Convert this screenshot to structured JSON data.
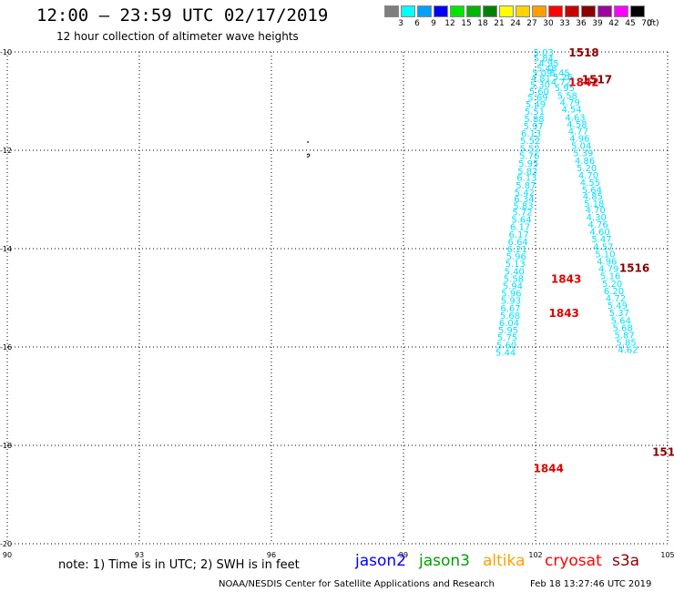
{
  "header": {
    "title": "12:00 – 23:59 UTC 02/17/2019",
    "subtitle": "12 hour collection of altimeter wave heights"
  },
  "scale": {
    "steps": [
      {
        "label": "3",
        "color": "#7f7f7f"
      },
      {
        "label": "6",
        "color": "#00ffff"
      },
      {
        "label": "9",
        "color": "#00a0ff"
      },
      {
        "label": "12",
        "color": "#0000ff"
      },
      {
        "label": "15",
        "color": "#00e600"
      },
      {
        "label": "18",
        "color": "#00b400"
      },
      {
        "label": "21",
        "color": "#008200"
      },
      {
        "label": "24",
        "color": "#ffff00"
      },
      {
        "label": "27",
        "color": "#ffd200"
      },
      {
        "label": "30",
        "color": "#ffa000"
      },
      {
        "label": "33",
        "color": "#ff0000"
      },
      {
        "label": "36",
        "color": "#c80000"
      },
      {
        "label": "39",
        "color": "#8c0000"
      },
      {
        "label": "42",
        "color": "#a000a0"
      },
      {
        "label": "45",
        "color": "#ff00ff"
      },
      {
        "label": "70",
        "color": "#000000"
      }
    ],
    "unit": "(ft)"
  },
  "axes": {
    "y_labels": [
      "-10",
      "-12",
      "-14",
      "-16",
      "-18",
      "-20"
    ],
    "x_labels": [
      "90",
      "93",
      "96",
      "99",
      "102",
      "105"
    ],
    "lat_range": [
      -20,
      -10
    ],
    "lon_range": [
      90,
      105
    ]
  },
  "track_values": {
    "color": "#00e0ff",
    "points": [
      [
        "5.03",
        102.18,
        -10.0
      ],
      [
        "5.84",
        102.18,
        -10.12
      ],
      [
        "4.95",
        102.3,
        -10.22
      ],
      [
        "5.48",
        102.25,
        -10.32
      ],
      [
        "5.09",
        102.15,
        -10.42
      ],
      [
        "4.81",
        102.12,
        -10.53
      ],
      [
        "5.30",
        102.1,
        -10.66
      ],
      [
        "5.60",
        102.08,
        -10.8
      ],
      [
        "5.69",
        102.05,
        -10.92
      ],
      [
        "5.49",
        102.0,
        -11.06
      ],
      [
        "5.51",
        101.98,
        -11.2
      ],
      [
        "5.88",
        101.97,
        -11.35
      ],
      [
        "5.97",
        101.95,
        -11.5
      ],
      [
        "6.13",
        101.9,
        -11.65
      ],
      [
        "5.52",
        101.88,
        -11.8
      ],
      [
        "5.52",
        101.87,
        -11.95
      ],
      [
        "5.76",
        101.86,
        -12.1
      ],
      [
        "5.95",
        101.84,
        -12.26
      ],
      [
        "5.82",
        101.82,
        -12.42
      ],
      [
        "6.13",
        101.8,
        -12.55
      ],
      [
        "5.87",
        101.78,
        -12.7
      ],
      [
        "5.42",
        101.75,
        -12.85
      ],
      [
        "6.34",
        101.74,
        -12.98
      ],
      [
        "5.83",
        101.72,
        -13.12
      ],
      [
        "5.72",
        101.7,
        -13.25
      ],
      [
        "5.64",
        101.68,
        -13.4
      ],
      [
        "6.17",
        101.65,
        -13.55
      ],
      [
        "6.17",
        101.62,
        -13.7
      ],
      [
        "6.64",
        101.6,
        -13.85
      ],
      [
        "6.21",
        101.58,
        -14.0
      ],
      [
        "5.96",
        101.56,
        -14.15
      ],
      [
        "5.13",
        101.54,
        -14.3
      ],
      [
        "5.40",
        101.52,
        -14.45
      ],
      [
        "5.58",
        101.5,
        -14.6
      ],
      [
        "5.94",
        101.48,
        -14.75
      ],
      [
        "5.96",
        101.45,
        -14.9
      ],
      [
        "5.93",
        101.44,
        -15.05
      ],
      [
        "6.67",
        101.43,
        -15.2
      ],
      [
        "5.68",
        101.42,
        -15.35
      ],
      [
        "6.04",
        101.4,
        -15.5
      ],
      [
        "5.95",
        101.38,
        -15.65
      ],
      [
        "5.75",
        101.36,
        -15.8
      ],
      [
        "5.60",
        101.34,
        -15.95
      ],
      [
        "5.44",
        101.32,
        -16.1
      ],
      [
        "5.45",
        102.55,
        -10.42
      ],
      [
        "5.26",
        102.62,
        -10.5
      ],
      [
        "4.72",
        102.58,
        -10.6
      ],
      [
        "5.95",
        102.66,
        -10.72
      ],
      [
        "5.58",
        102.72,
        -10.88
      ],
      [
        "4.79",
        102.78,
        -11.02
      ],
      [
        "4.54",
        102.82,
        -11.16
      ],
      [
        "4.63",
        102.9,
        -11.32
      ],
      [
        "4.58",
        102.94,
        -11.46
      ],
      [
        "4.77",
        102.97,
        -11.6
      ],
      [
        "4.96",
        103.0,
        -11.75
      ],
      [
        "5.04",
        103.04,
        -11.9
      ],
      [
        "5.39",
        103.08,
        -12.05
      ],
      [
        "4.86",
        103.12,
        -12.2
      ],
      [
        "5.20",
        103.16,
        -12.35
      ],
      [
        "4.70",
        103.2,
        -12.5
      ],
      [
        "4.55",
        103.24,
        -12.65
      ],
      [
        "5.64",
        103.28,
        -12.8
      ],
      [
        "4.85",
        103.3,
        -12.93
      ],
      [
        "5.18",
        103.33,
        -13.07
      ],
      [
        "4.70",
        103.36,
        -13.2
      ],
      [
        "4.30",
        103.38,
        -13.35
      ],
      [
        "4.76",
        103.42,
        -13.5
      ],
      [
        "4.60",
        103.46,
        -13.65
      ],
      [
        "5.47",
        103.5,
        -13.8
      ],
      [
        "4.57",
        103.54,
        -13.95
      ],
      [
        "5.10",
        103.58,
        -14.1
      ],
      [
        "4.96",
        103.62,
        -14.25
      ],
      [
        "4.79",
        103.66,
        -14.4
      ],
      [
        "5.16",
        103.7,
        -14.55
      ],
      [
        "5.20",
        103.74,
        -14.7
      ],
      [
        "6.20",
        103.78,
        -14.85
      ],
      [
        "4.72",
        103.82,
        -15.0
      ],
      [
        "5.49",
        103.86,
        -15.15
      ],
      [
        "5.37",
        103.9,
        -15.3
      ],
      [
        "5.64",
        103.94,
        -15.45
      ],
      [
        "5.68",
        103.98,
        -15.6
      ],
      [
        "5.87",
        104.02,
        -15.75
      ],
      [
        "5.85",
        104.06,
        -15.9
      ],
      [
        "4.62",
        104.1,
        -16.05
      ]
    ]
  },
  "time_labels": [
    {
      "text": "1518",
      "color": "#8c0000",
      "lon": 102.75,
      "lat": -10.0
    },
    {
      "text": "1517",
      "color": "#8c0000",
      "lon": 103.05,
      "lat": -10.55
    },
    {
      "text": "1842",
      "color": "#e00000",
      "lon": 102.75,
      "lat": -10.6
    },
    {
      "text": "1516",
      "color": "#8c0000",
      "lon": 103.9,
      "lat": -14.38
    },
    {
      "text": "1843",
      "color": "#e00000",
      "lon": 102.35,
      "lat": -14.6
    },
    {
      "text": "1843",
      "color": "#e00000",
      "lon": 102.3,
      "lat": -15.3
    },
    {
      "text": "151",
      "color": "#8c0000",
      "lon": 104.65,
      "lat": -18.12
    },
    {
      "text": "1844",
      "color": "#e00000",
      "lon": 101.95,
      "lat": -18.45
    }
  ],
  "footer": {
    "note": "note: 1) Time is in UTC; 2) SWH is in feet",
    "satellites": [
      {
        "name": "jason2",
        "color": "#0000ff"
      },
      {
        "name": "jason3",
        "color": "#00a000"
      },
      {
        "name": "altika",
        "color": "#ffa000"
      },
      {
        "name": "cryosat",
        "color": "#ff0000"
      },
      {
        "name": "s3a",
        "color": "#8c0000"
      }
    ],
    "credit": "NOAA/NESDIS Center for Satellite Applications and Research",
    "timestamp": "Feb 18 13:27:46 UTC 2019"
  }
}
